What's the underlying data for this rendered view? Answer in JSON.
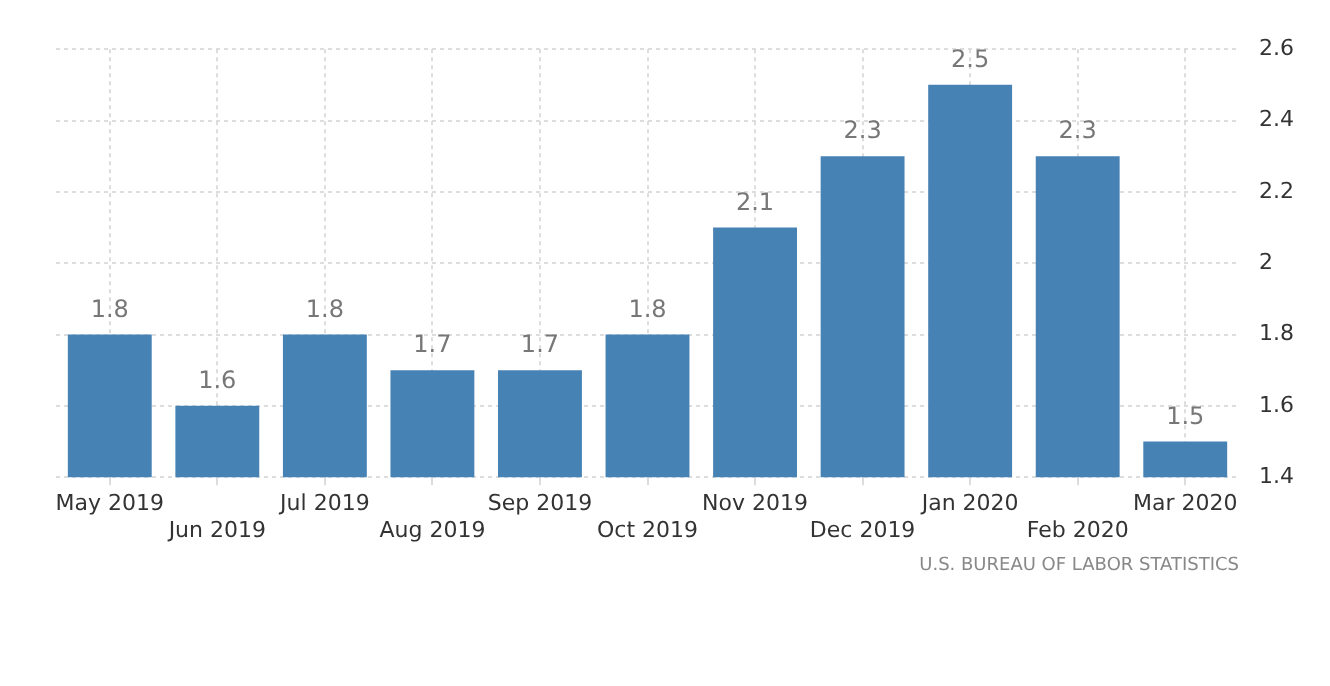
{
  "chart_data": {
    "type": "bar",
    "categories": [
      "May 2019",
      "Jun 2019",
      "Jul 2019",
      "Aug 2019",
      "Sep 2019",
      "Oct 2019",
      "Nov 2019",
      "Dec 2019",
      "Jan 2020",
      "Feb 2020",
      "Mar 2020"
    ],
    "values": [
      1.8,
      1.6,
      1.8,
      1.7,
      1.7,
      1.8,
      2.1,
      2.3,
      2.5,
      2.3,
      1.5
    ],
    "color": "#4682b4",
    "ylim": [
      1.4,
      2.6
    ],
    "yticks": [
      1.4,
      1.6,
      1.8,
      2,
      2.2,
      2.4,
      2.6
    ],
    "grid": true,
    "data_labels": true,
    "annotations": [
      "U.S. BUREAU OF LABOR STATISTICS"
    ]
  }
}
